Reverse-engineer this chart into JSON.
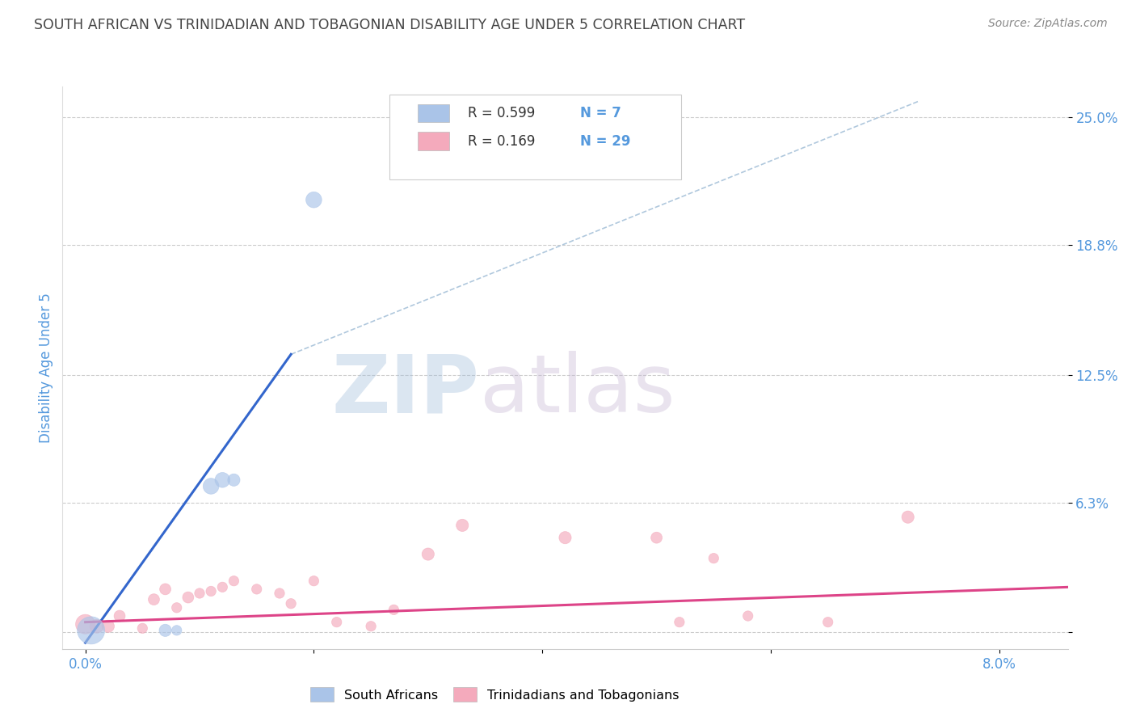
{
  "title": "SOUTH AFRICAN VS TRINIDADIAN AND TOBAGONIAN DISABILITY AGE UNDER 5 CORRELATION CHART",
  "source": "Source: ZipAtlas.com",
  "ylabel": "Disability Age Under 5",
  "x_ticks": [
    0.0,
    0.02,
    0.04,
    0.06,
    0.08
  ],
  "x_tick_labels": [
    "0.0%",
    "",
    "",
    "",
    "8.0%"
  ],
  "y_ticks": [
    0.0,
    0.063,
    0.125,
    0.188,
    0.25
  ],
  "y_tick_labels": [
    "",
    "6.3%",
    "12.5%",
    "18.8%",
    "25.0%"
  ],
  "xlim": [
    -0.002,
    0.086
  ],
  "ylim": [
    -0.008,
    0.265
  ],
  "r_blue": "0.599",
  "n_blue": "7",
  "r_pink": "0.169",
  "n_pink": "29",
  "blue_scatter_x": [
    0.0005,
    0.007,
    0.008,
    0.011,
    0.012,
    0.013,
    0.02
  ],
  "blue_scatter_y": [
    0.001,
    0.001,
    0.001,
    0.071,
    0.074,
    0.074,
    0.21
  ],
  "blue_scatter_sizes": [
    600,
    120,
    80,
    200,
    180,
    120,
    200
  ],
  "pink_scatter_x": [
    0.0,
    0.001,
    0.002,
    0.003,
    0.005,
    0.006,
    0.007,
    0.008,
    0.009,
    0.01,
    0.011,
    0.012,
    0.013,
    0.015,
    0.017,
    0.018,
    0.02,
    0.022,
    0.025,
    0.027,
    0.03,
    0.033,
    0.042,
    0.05,
    0.052,
    0.055,
    0.058,
    0.065,
    0.072
  ],
  "pink_scatter_y": [
    0.004,
    0.003,
    0.003,
    0.008,
    0.002,
    0.016,
    0.021,
    0.012,
    0.017,
    0.019,
    0.02,
    0.022,
    0.025,
    0.021,
    0.019,
    0.014,
    0.025,
    0.005,
    0.003,
    0.011,
    0.038,
    0.052,
    0.046,
    0.046,
    0.005,
    0.036,
    0.008,
    0.005,
    0.056
  ],
  "pink_scatter_sizes": [
    300,
    150,
    120,
    100,
    80,
    100,
    100,
    80,
    100,
    80,
    80,
    80,
    80,
    80,
    80,
    80,
    80,
    80,
    80,
    80,
    120,
    120,
    120,
    100,
    80,
    80,
    80,
    80,
    120
  ],
  "blue_trend_x": [
    0.0,
    0.018
  ],
  "blue_trend_y": [
    -0.005,
    0.135
  ],
  "pink_trend_x": [
    0.0,
    0.086
  ],
  "pink_trend_y": [
    0.005,
    0.022
  ],
  "dash_line_x": [
    0.018,
    0.073
  ],
  "dash_line_y": [
    0.135,
    0.258
  ],
  "background_color": "#ffffff",
  "blue_color": "#aac4e8",
  "pink_color": "#f4aabc",
  "blue_line_color": "#3366cc",
  "pink_line_color": "#dd4488",
  "dash_color": "#b0c8dd",
  "title_color": "#444444",
  "tick_color": "#5599dd",
  "grid_color": "#cccccc",
  "legend_blue_label": "South Africans",
  "legend_pink_label": "Trinidadians and Tobagonians"
}
